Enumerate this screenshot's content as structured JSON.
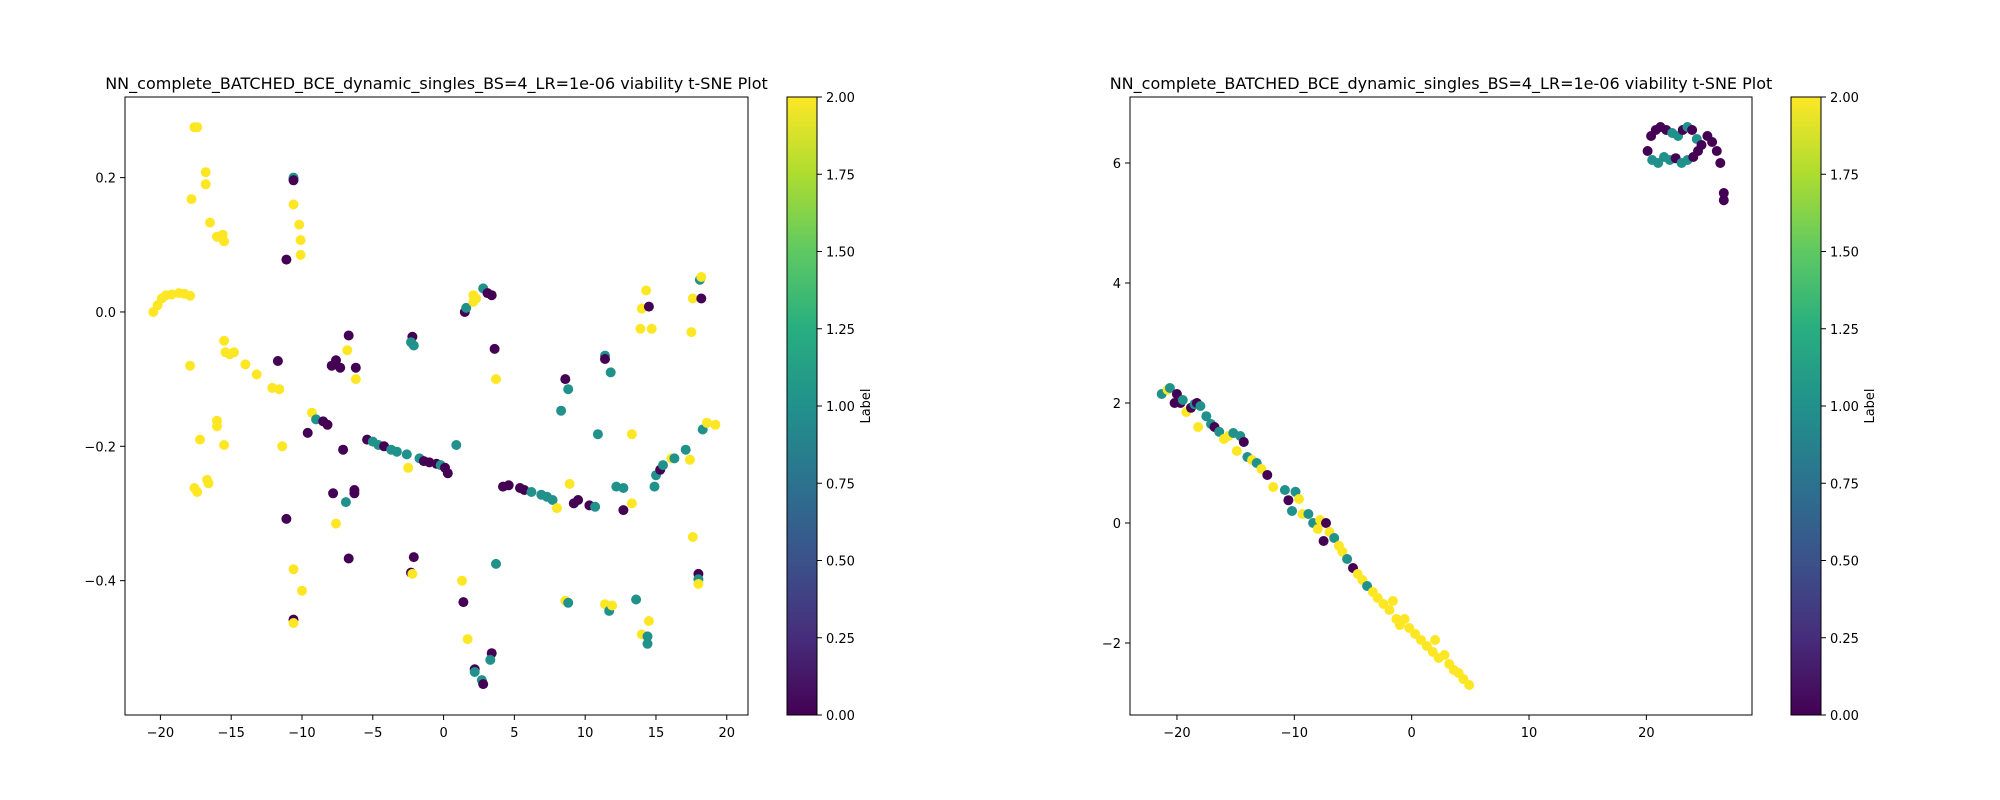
{
  "chart_data": [
    {
      "type": "scatter",
      "title": "NN_complete_BATCHED_BCE_dynamic_singles_BS=4_LR=1e-06 viability t-SNE Plot",
      "xlim": [
        -22.5,
        21.5
      ],
      "ylim": [
        -0.6,
        0.32
      ],
      "xticks": [
        -20,
        -15,
        -10,
        -5,
        0,
        5,
        10,
        15,
        20
      ],
      "yticks": [
        -0.4,
        -0.2,
        0.0,
        0.2
      ],
      "ytick_labels": [
        "−0.4",
        "−0.2",
        "0.0",
        "0.2"
      ],
      "xtick_labels": [
        "−20",
        "−15",
        "−10",
        "−5",
        "0",
        "5",
        "10",
        "15",
        "20"
      ],
      "colorbar": {
        "label": "Label",
        "range": [
          0,
          2
        ],
        "ticks": [
          "0.00",
          "0.25",
          "0.50",
          "0.75",
          "1.00",
          "1.25",
          "1.50",
          "1.75",
          "2.00"
        ],
        "colormap": "viridis"
      },
      "points": [
        [
          -20.5,
          0.0,
          2
        ],
        [
          -20.2,
          0.01,
          2
        ],
        [
          -19.9,
          0.02,
          2
        ],
        [
          -19.6,
          0.025,
          2
        ],
        [
          -19.2,
          0.026,
          2
        ],
        [
          -18.7,
          0.028,
          2
        ],
        [
          -18.3,
          0.027,
          2
        ],
        [
          -17.9,
          0.024,
          2
        ],
        [
          -17.6,
          0.275,
          2
        ],
        [
          -17.4,
          0.275,
          2
        ],
        [
          -17.8,
          0.168,
          2
        ],
        [
          -16.8,
          0.208,
          2
        ],
        [
          -16.8,
          0.19,
          2
        ],
        [
          -16.5,
          0.133,
          2
        ],
        [
          -16.0,
          0.112,
          2
        ],
        [
          -15.6,
          0.115,
          2
        ],
        [
          -15.5,
          0.105,
          2
        ],
        [
          -17.9,
          -0.08,
          2
        ],
        [
          -15.5,
          -0.043,
          2
        ],
        [
          -15.4,
          -0.06,
          2
        ],
        [
          -15.1,
          -0.063,
          2
        ],
        [
          -14.8,
          -0.06,
          2
        ],
        [
          -14.0,
          -0.078,
          2
        ],
        [
          -13.2,
          -0.093,
          2
        ],
        [
          -12.1,
          -0.113,
          2
        ],
        [
          -11.6,
          -0.115,
          2
        ],
        [
          -16.0,
          -0.162,
          2
        ],
        [
          -16.0,
          -0.17,
          2
        ],
        [
          -17.2,
          -0.19,
          2
        ],
        [
          -15.5,
          -0.198,
          2
        ],
        [
          -11.4,
          -0.2,
          2
        ],
        [
          -17.6,
          -0.262,
          2
        ],
        [
          -17.4,
          -0.268,
          2
        ],
        [
          -16.7,
          -0.25,
          2
        ],
        [
          -16.6,
          -0.255,
          2
        ],
        [
          -10.6,
          0.16,
          2
        ],
        [
          -10.2,
          0.13,
          2
        ],
        [
          -10.1,
          0.107,
          2
        ],
        [
          -10.1,
          0.085,
          2
        ],
        [
          -10.6,
          0.2,
          1
        ],
        [
          -10.6,
          0.196,
          0
        ],
        [
          -11.1,
          0.078,
          0
        ],
        [
          -11.7,
          -0.073,
          0
        ],
        [
          -9.3,
          -0.15,
          2
        ],
        [
          -9.0,
          -0.16,
          1
        ],
        [
          -8.5,
          -0.163,
          0
        ],
        [
          -8.2,
          -0.168,
          0
        ],
        [
          -9.6,
          -0.18,
          0
        ],
        [
          -7.6,
          -0.072,
          0
        ],
        [
          -7.3,
          -0.083,
          0
        ],
        [
          -6.7,
          -0.035,
          0
        ],
        [
          -6.8,
          -0.057,
          2
        ],
        [
          -6.2,
          -0.083,
          0
        ],
        [
          -6.2,
          -0.1,
          2
        ],
        [
          -7.9,
          -0.08,
          0
        ],
        [
          -7.1,
          -0.205,
          0
        ],
        [
          -7.8,
          -0.27,
          0
        ],
        [
          -6.9,
          -0.283,
          1
        ],
        [
          -6.3,
          -0.265,
          0
        ],
        [
          -6.3,
          -0.27,
          0
        ],
        [
          -7.6,
          -0.315,
          2
        ],
        [
          -11.1,
          -0.308,
          0
        ],
        [
          -6.7,
          -0.367,
          0
        ],
        [
          -10.6,
          -0.383,
          2
        ],
        [
          -10.0,
          -0.415,
          2
        ],
        [
          -10.6,
          -0.458,
          0
        ],
        [
          -10.6,
          -0.463,
          2
        ],
        [
          -5.4,
          -0.19,
          0
        ],
        [
          -5.0,
          -0.193,
          1
        ],
        [
          -4.6,
          -0.198,
          1
        ],
        [
          -4.2,
          -0.2,
          0
        ],
        [
          -3.7,
          -0.205,
          1
        ],
        [
          -3.3,
          -0.208,
          1
        ],
        [
          -2.6,
          -0.212,
          1
        ],
        [
          -1.7,
          -0.218,
          1
        ],
        [
          -1.4,
          -0.222,
          0
        ],
        [
          -1.0,
          -0.224,
          0
        ],
        [
          -0.5,
          -0.226,
          0
        ],
        [
          -0.2,
          -0.228,
          1
        ],
        [
          0.1,
          -0.232,
          0
        ],
        [
          0.3,
          -0.24,
          0
        ],
        [
          -2.5,
          -0.232,
          2
        ],
        [
          0.9,
          -0.198,
          1
        ],
        [
          -2.2,
          -0.037,
          0
        ],
        [
          -2.3,
          -0.045,
          1
        ],
        [
          -2.1,
          -0.05,
          1
        ],
        [
          -2.1,
          -0.365,
          0
        ],
        [
          -2.3,
          -0.388,
          0
        ],
        [
          -2.2,
          -0.39,
          2
        ],
        [
          1.5,
          0.0,
          0
        ],
        [
          1.6,
          0.006,
          1
        ],
        [
          2.1,
          0.025,
          2
        ],
        [
          2.3,
          0.02,
          2
        ],
        [
          2.1,
          0.015,
          2
        ],
        [
          2.8,
          0.035,
          1
        ],
        [
          3.1,
          0.028,
          0
        ],
        [
          3.4,
          0.025,
          0
        ],
        [
          3.6,
          -0.055,
          0
        ],
        [
          3.7,
          -0.1,
          2
        ],
        [
          3.7,
          -0.375,
          1
        ],
        [
          1.3,
          -0.4,
          2
        ],
        [
          1.4,
          -0.432,
          0
        ],
        [
          1.7,
          -0.487,
          2
        ],
        [
          3.4,
          -0.508,
          0
        ],
        [
          3.3,
          -0.518,
          1
        ],
        [
          2.2,
          -0.532,
          0
        ],
        [
          2.2,
          -0.536,
          1
        ],
        [
          2.7,
          -0.548,
          1
        ],
        [
          2.8,
          -0.554,
          0
        ],
        [
          4.2,
          -0.26,
          0
        ],
        [
          4.6,
          -0.258,
          0
        ],
        [
          5.4,
          -0.262,
          0
        ],
        [
          5.7,
          -0.265,
          0
        ],
        [
          6.2,
          -0.268,
          1
        ],
        [
          6.9,
          -0.272,
          1
        ],
        [
          7.3,
          -0.275,
          1
        ],
        [
          7.7,
          -0.28,
          1
        ],
        [
          8.0,
          -0.292,
          2
        ],
        [
          8.9,
          -0.256,
          2
        ],
        [
          9.2,
          -0.285,
          0
        ],
        [
          9.5,
          -0.28,
          0
        ],
        [
          10.3,
          -0.288,
          0
        ],
        [
          10.7,
          -0.29,
          1
        ],
        [
          8.6,
          -0.1,
          0
        ],
        [
          8.8,
          -0.115,
          1
        ],
        [
          8.3,
          -0.147,
          1
        ],
        [
          10.9,
          -0.182,
          1
        ],
        [
          11.4,
          -0.065,
          1
        ],
        [
          11.4,
          -0.07,
          0
        ],
        [
          11.8,
          -0.09,
          1
        ],
        [
          12.2,
          -0.26,
          1
        ],
        [
          12.7,
          -0.262,
          1
        ],
        [
          12.7,
          -0.295,
          0
        ],
        [
          13.3,
          -0.285,
          2
        ],
        [
          13.3,
          -0.182,
          2
        ],
        [
          8.6,
          -0.43,
          2
        ],
        [
          8.8,
          -0.433,
          1
        ],
        [
          11.4,
          -0.435,
          2
        ],
        [
          11.7,
          -0.445,
          1
        ],
        [
          11.9,
          -0.437,
          2
        ],
        [
          13.6,
          -0.428,
          1
        ],
        [
          14.0,
          -0.48,
          2
        ],
        [
          14.5,
          -0.46,
          2
        ],
        [
          14.4,
          -0.483,
          1
        ],
        [
          14.4,
          -0.494,
          1
        ],
        [
          13.9,
          -0.025,
          2
        ],
        [
          14.0,
          0.005,
          2
        ],
        [
          14.3,
          0.032,
          2
        ],
        [
          14.5,
          0.008,
          0
        ],
        [
          14.7,
          -0.025,
          2
        ],
        [
          14.9,
          -0.26,
          1
        ],
        [
          15.0,
          -0.243,
          1
        ],
        [
          15.3,
          -0.235,
          0
        ],
        [
          15.5,
          -0.228,
          1
        ],
        [
          16.1,
          -0.218,
          2
        ],
        [
          16.3,
          -0.218,
          1
        ],
        [
          17.1,
          -0.205,
          1
        ],
        [
          17.4,
          -0.22,
          2
        ],
        [
          17.5,
          -0.03,
          2
        ],
        [
          17.6,
          0.02,
          2
        ],
        [
          18.1,
          0.048,
          1
        ],
        [
          18.2,
          0.02,
          0
        ],
        [
          18.2,
          0.052,
          2
        ],
        [
          18.3,
          -0.175,
          1
        ],
        [
          18.6,
          -0.165,
          2
        ],
        [
          19.2,
          -0.168,
          2
        ],
        [
          17.6,
          -0.335,
          2
        ],
        [
          18.0,
          -0.39,
          0
        ],
        [
          18.0,
          -0.398,
          1
        ],
        [
          18.0,
          -0.405,
          2
        ]
      ]
    },
    {
      "type": "scatter",
      "title": "NN_complete_BATCHED_BCE_dynamic_singles_BS=4_LR=1e-06 viability t-SNE Plot",
      "xlim": [
        -24,
        29
      ],
      "ylim": [
        -3.2,
        7.1
      ],
      "xticks": [
        -20,
        -10,
        0,
        10,
        20
      ],
      "yticks": [
        -2,
        0,
        2,
        4,
        6
      ],
      "ytick_labels": [
        "−2",
        "0",
        "2",
        "4",
        "6"
      ],
      "xtick_labels": [
        "−20",
        "−10",
        "0",
        "10",
        "20"
      ],
      "colorbar": {
        "label": "Label",
        "range": [
          0,
          2
        ],
        "ticks": [
          "0.00",
          "0.25",
          "0.50",
          "0.75",
          "1.00",
          "1.25",
          "1.50",
          "1.75",
          "2.00"
        ],
        "colormap": "viridis"
      },
      "points": [
        [
          -21.3,
          2.15,
          1
        ],
        [
          -20.8,
          2.22,
          2
        ],
        [
          -20.6,
          2.25,
          1
        ],
        [
          -20.2,
          2.0,
          0
        ],
        [
          -20.0,
          2.15,
          0
        ],
        [
          -19.7,
          2.0,
          0
        ],
        [
          -19.5,
          2.05,
          1
        ],
        [
          -19.2,
          1.85,
          2
        ],
        [
          -18.8,
          1.92,
          0
        ],
        [
          -18.5,
          1.98,
          1
        ],
        [
          -18.3,
          2.0,
          0
        ],
        [
          -18.2,
          1.6,
          2
        ],
        [
          -18.0,
          1.95,
          1
        ],
        [
          -17.5,
          1.78,
          1
        ],
        [
          -17.1,
          1.65,
          1
        ],
        [
          -16.8,
          1.6,
          0
        ],
        [
          -16.4,
          1.52,
          1
        ],
        [
          -16.0,
          1.4,
          2
        ],
        [
          -15.6,
          1.45,
          2
        ],
        [
          -15.2,
          1.5,
          1
        ],
        [
          -14.9,
          1.2,
          2
        ],
        [
          -14.6,
          1.45,
          1
        ],
        [
          -14.3,
          1.35,
          0
        ],
        [
          -14.0,
          1.1,
          1
        ],
        [
          -13.6,
          1.05,
          2
        ],
        [
          -13.2,
          1.0,
          1
        ],
        [
          -12.8,
          0.9,
          2
        ],
        [
          -12.3,
          0.8,
          0
        ],
        [
          -11.8,
          0.6,
          2
        ],
        [
          -10.8,
          0.55,
          1
        ],
        [
          -10.5,
          0.38,
          0
        ],
        [
          -10.2,
          0.2,
          1
        ],
        [
          -9.9,
          0.52,
          1
        ],
        [
          -9.6,
          0.4,
          2
        ],
        [
          -9.3,
          0.15,
          2
        ],
        [
          -8.8,
          0.15,
          1
        ],
        [
          -8.4,
          0.0,
          1
        ],
        [
          -8.0,
          -0.1,
          2
        ],
        [
          -7.8,
          0.05,
          2
        ],
        [
          -7.5,
          -0.3,
          0
        ],
        [
          -7.3,
          0.0,
          0
        ],
        [
          -7.0,
          -0.15,
          2
        ],
        [
          -6.6,
          -0.25,
          1
        ],
        [
          -6.2,
          -0.38,
          2
        ],
        [
          -5.9,
          -0.48,
          2
        ],
        [
          -5.5,
          -0.6,
          1
        ],
        [
          -5.0,
          -0.75,
          0
        ],
        [
          -4.6,
          -0.85,
          2
        ],
        [
          -4.2,
          -0.95,
          2
        ],
        [
          -3.8,
          -1.05,
          1
        ],
        [
          -3.3,
          -1.15,
          2
        ],
        [
          -2.9,
          -1.25,
          2
        ],
        [
          -2.4,
          -1.35,
          2
        ],
        [
          -1.9,
          -1.45,
          2
        ],
        [
          -1.6,
          -1.3,
          2
        ],
        [
          -1.3,
          -1.6,
          2
        ],
        [
          -1.0,
          -1.7,
          2
        ],
        [
          -0.6,
          -1.6,
          2
        ],
        [
          -0.2,
          -1.75,
          2
        ],
        [
          0.3,
          -1.85,
          2
        ],
        [
          0.8,
          -1.95,
          2
        ],
        [
          1.3,
          -2.05,
          2
        ],
        [
          1.8,
          -2.15,
          2
        ],
        [
          2.0,
          -1.95,
          2
        ],
        [
          2.3,
          -2.25,
          2
        ],
        [
          2.8,
          -2.2,
          2
        ],
        [
          3.2,
          -2.35,
          2
        ],
        [
          3.6,
          -2.45,
          2
        ],
        [
          4.0,
          -2.5,
          2
        ],
        [
          4.4,
          -2.6,
          2
        ],
        [
          4.9,
          -2.7,
          2
        ],
        [
          20.1,
          6.2,
          0
        ],
        [
          20.4,
          6.45,
          0
        ],
        [
          20.8,
          6.55,
          0
        ],
        [
          21.2,
          6.6,
          0
        ],
        [
          21.7,
          6.55,
          0
        ],
        [
          22.2,
          6.5,
          1
        ],
        [
          22.7,
          6.45,
          1
        ],
        [
          23.1,
          6.55,
          0
        ],
        [
          23.5,
          6.6,
          1
        ],
        [
          23.9,
          6.55,
          0
        ],
        [
          24.3,
          6.4,
          1
        ],
        [
          24.7,
          6.3,
          0
        ],
        [
          25.2,
          6.45,
          0
        ],
        [
          25.6,
          6.35,
          0
        ],
        [
          26.0,
          6.2,
          0
        ],
        [
          26.3,
          6.0,
          0
        ],
        [
          26.6,
          5.5,
          0
        ],
        [
          26.6,
          5.38,
          0
        ],
        [
          20.5,
          6.05,
          1
        ],
        [
          21.0,
          6.0,
          1
        ],
        [
          21.5,
          6.1,
          1
        ],
        [
          22.0,
          6.05,
          1
        ],
        [
          22.5,
          6.08,
          0
        ],
        [
          23.0,
          6.0,
          1
        ],
        [
          23.5,
          6.05,
          1
        ],
        [
          24.0,
          6.1,
          0
        ],
        [
          24.4,
          6.2,
          0
        ]
      ]
    }
  ]
}
